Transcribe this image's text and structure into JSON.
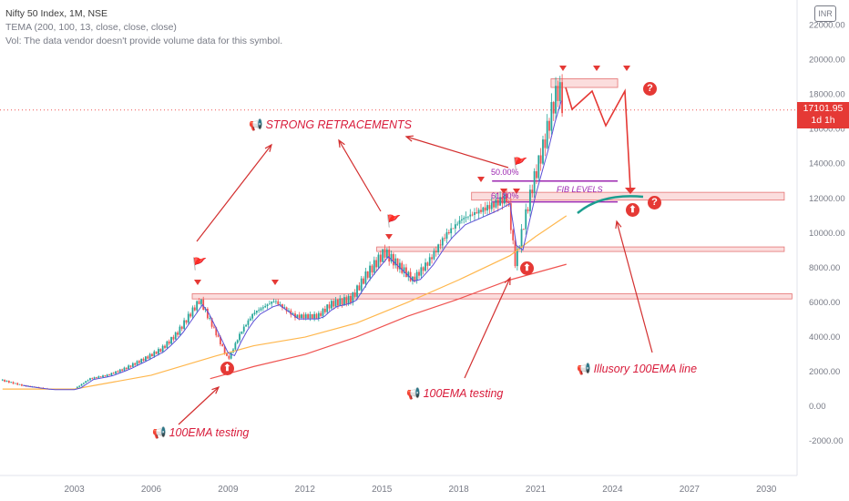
{
  "legend": {
    "title": "Nifty 50 Index, 1M, NSE",
    "indicator": "TEMA (200, 100, 13, close, close, close)",
    "volume_note": "Vol: The data vendor doesn't provide volume data for this symbol."
  },
  "currency_badge": "INR",
  "price_tag": {
    "value": "17101.95",
    "interval": "1d 1h"
  },
  "annotations": {
    "strong_retracements": "STRONG RETRACEMENTS",
    "ema_testing_1": "100EMA testing",
    "ema_testing_2": "100EMA testing",
    "illusory": "Illusory 100EMA line",
    "fib_levels": "FIB LEVELS",
    "fib_50": "50.00%",
    "fib_618": "61.80%",
    "question_mark": "?",
    "up_arrow": "⬆",
    "megaphone": "📢",
    "flag": "🚩"
  },
  "colors": {
    "candle_up": "#26a69a",
    "candle_down": "#ef5350",
    "ema_fast": "#5b4fd6",
    "ema_100": "#ffb74d",
    "ema_200": "#ef5350",
    "resistance_zone": "#f6b4b4",
    "fib_line": "#9c27b0",
    "teal_curve": "#1b9e8f"
  },
  "chart_data": {
    "type": "line",
    "title": "Nifty 50 Index, 1M, NSE",
    "x_ticks": [
      "2003",
      "2006",
      "2009",
      "2012",
      "2015",
      "2018",
      "2021",
      "2024",
      "2027",
      "2030"
    ],
    "y_ticks": [
      "22000.00",
      "20000.00",
      "18000.00",
      "16000.00",
      "14000.00",
      "12000.00",
      "10000.00",
      "8000.00",
      "6000.00",
      "4000.00",
      "2000.00",
      "0.00",
      "-2000.00",
      "-4000.00"
    ],
    "ylim": [
      -4000,
      23000
    ],
    "xlim": [
      2000.1,
      2031.2
    ],
    "series": [
      {
        "name": "Nifty 50",
        "x": [
          2000.2,
          2001,
          2002,
          2003,
          2003.6,
          2004.3,
          2005,
          2005.8,
          2006.4,
          2007,
          2007.9,
          2008.5,
          2009.0,
          2009.5,
          2010,
          2010.8,
          2011.6,
          2012.5,
          2013,
          2013.8,
          2014.4,
          2015.1,
          2015.8,
          2016.2,
          2016.8,
          2017.5,
          2018.1,
          2018.7,
          2019.3,
          2019.9,
          2020.2,
          2020.5,
          2020.9,
          2021.3,
          2021.7,
          2021.9,
          2022.1
        ],
        "y": [
          1500,
          1200,
          1000,
          1000,
          1600,
          1800,
          2200,
          2800,
          3300,
          4200,
          6150,
          4300,
          2700,
          4300,
          5400,
          6100,
          5200,
          5200,
          5900,
          6200,
          7600,
          8900,
          7900,
          7300,
          8300,
          9900,
          10800,
          11200,
          11600,
          12100,
          8300,
          10300,
          12900,
          15000,
          17500,
          18400,
          17100
        ]
      },
      {
        "name": "TEMA 200",
        "x": [
          2008.3,
          2010,
          2012,
          2014,
          2016,
          2018,
          2020,
          2022.2
        ],
        "y": [
          1600,
          2300,
          3000,
          4000,
          5200,
          6200,
          7300,
          8200
        ]
      },
      {
        "name": "TEMA 100",
        "x": [
          2000.2,
          2003,
          2006,
          2008.5,
          2010,
          2012,
          2014,
          2016,
          2018,
          2020,
          2021,
          2022.2
        ],
        "y": [
          1000,
          1000,
          1800,
          2900,
          3500,
          4000,
          4800,
          6000,
          7300,
          8700,
          9800,
          11000
        ]
      }
    ],
    "zones": [
      {
        "name": "resistance 1",
        "y_low": 6200,
        "y_high": 6500,
        "x_from": 2007.6,
        "x_to": 2031
      },
      {
        "name": "resistance 2",
        "y_low": 9000,
        "y_high": 9200,
        "x_from": 2014.8,
        "x_to": 2030.7
      },
      {
        "name": "resistance 3",
        "y_low": 11900,
        "y_high": 12350,
        "x_from": 2018.5,
        "x_to": 2030.7
      },
      {
        "name": "top zone",
        "y_low": 18400,
        "y_high": 18900,
        "x_from": 2021.6,
        "x_to": 2024.2
      }
    ],
    "fib_levels": [
      {
        "label": "50.00%",
        "y": 13000
      },
      {
        "label": "61.80%",
        "y": 11800
      }
    ],
    "grid": false,
    "legend_position": "top-left"
  }
}
